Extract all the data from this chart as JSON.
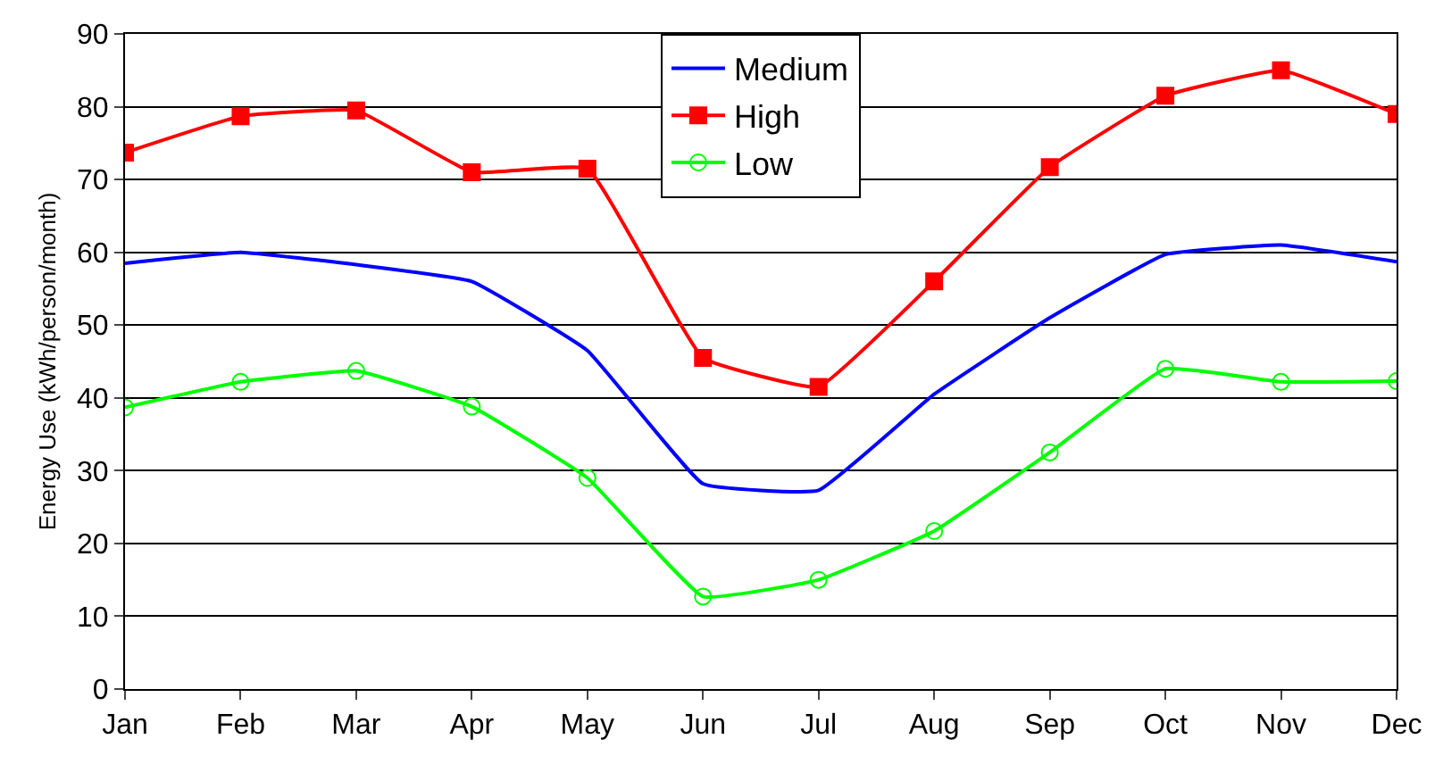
{
  "chart_data": {
    "type": "line",
    "ylabel": "Energy Use (kWh/person/month)",
    "categories": [
      "Jan",
      "Feb",
      "Mar",
      "Apr",
      "May",
      "Jun",
      "Jul",
      "Aug",
      "Sep",
      "Oct",
      "Nov",
      "Dec"
    ],
    "series": [
      {
        "name": "Medium",
        "color": "#0000ff",
        "marker": "none",
        "values": [
          58.5,
          60,
          58.3,
          56,
          46.5,
          28.2,
          27.3,
          40.5,
          51,
          59.7,
          61,
          58.7
        ]
      },
      {
        "name": "High",
        "color": "#ff0000",
        "marker": "square",
        "values": [
          73.7,
          78.7,
          79.5,
          71,
          71.5,
          45.5,
          41.5,
          56,
          71.7,
          81.5,
          85,
          79
        ]
      },
      {
        "name": "Low",
        "color": "#00ff00",
        "marker": "circle",
        "values": [
          38.7,
          42.2,
          43.7,
          38.8,
          29,
          12.7,
          15,
          21.7,
          32.5,
          44,
          42.2,
          42.3
        ]
      }
    ],
    "ylim": [
      0,
      90
    ],
    "yticks": [
      0,
      10,
      20,
      30,
      40,
      50,
      60,
      70,
      80,
      90
    ],
    "grid": "y",
    "legend": "top",
    "line_style": "solid"
  }
}
